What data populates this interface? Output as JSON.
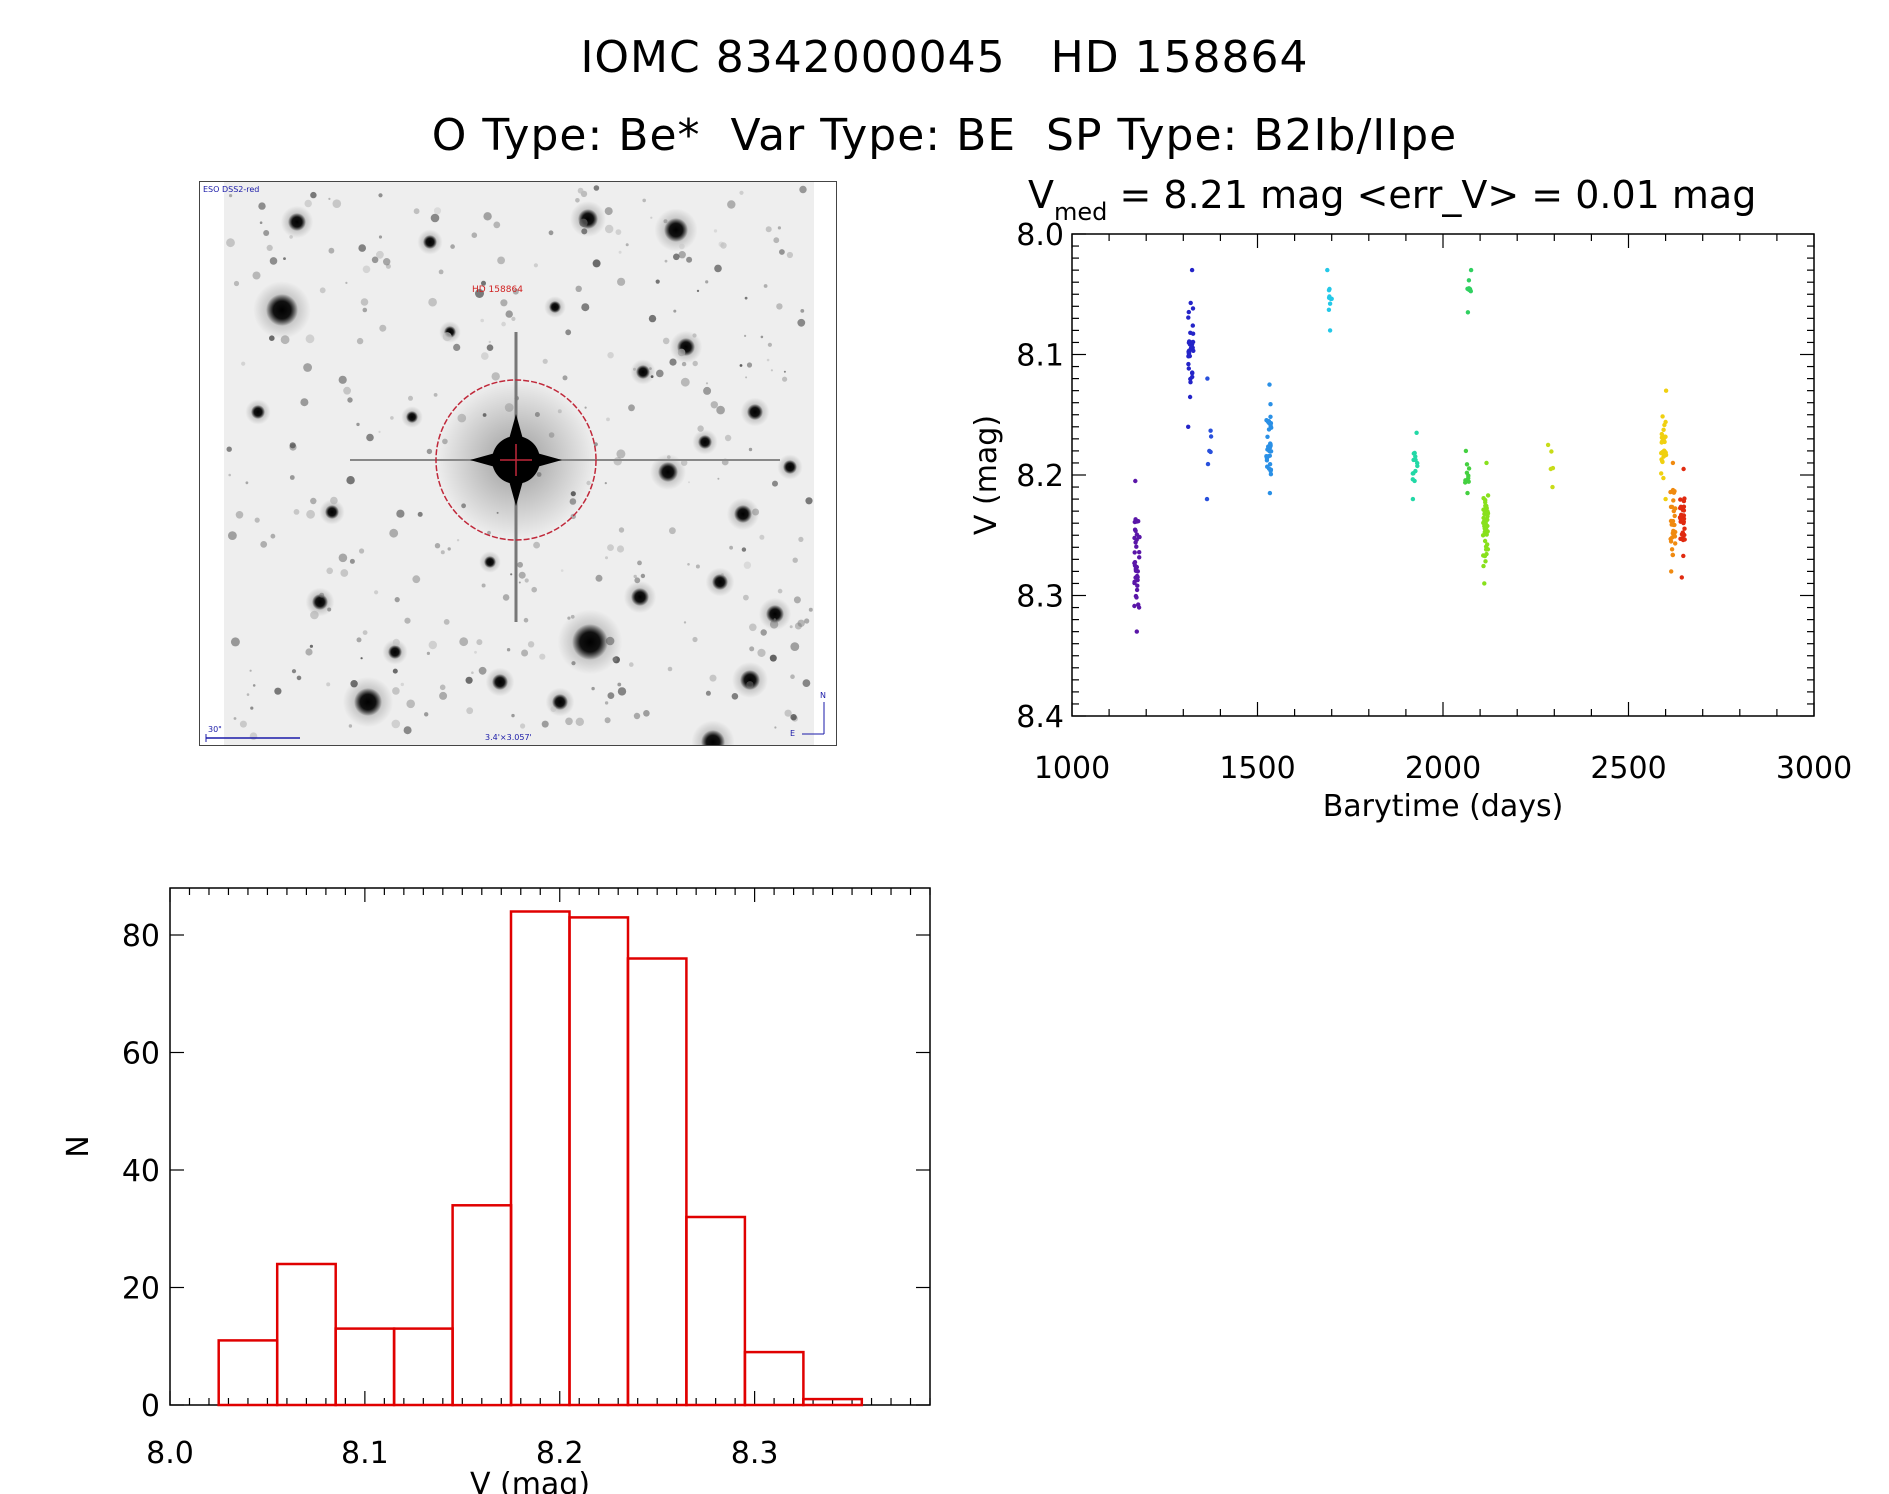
{
  "header": {
    "title_line1": "IOMC 8342000045   HD 158864",
    "title_line2": "O Type: Be*  Var Type: BE  SP Type: B2Ib/IIpe"
  },
  "finder_chart": {
    "survey_label": "ESO DSS2-red",
    "target_label": "HD 158864",
    "scale_label": "30\"",
    "field_label": "3.4'×3.057'",
    "north_label": "N",
    "east_label": "E",
    "colors": {
      "circle": "#c0283a",
      "labels": "#1a1aa8",
      "target_label": "#d02020"
    }
  },
  "chart_data": [
    {
      "type": "scatter",
      "title": "= 8.21 mag <err_V> = 0.01 mag",
      "title_prefix": "V",
      "title_subscript": "med",
      "xlabel": "Barytime (days)",
      "ylabel": "V (mag)",
      "xlim": [
        1000,
        3000
      ],
      "ylim": [
        8.4,
        8.0
      ],
      "y_inverted": true,
      "xticks": [
        "1000",
        "1500",
        "2000",
        "2500",
        "3000"
      ],
      "yticks": [
        "8.0",
        "8.1",
        "8.2",
        "8.3",
        "8.4"
      ],
      "color_scale": "rainbow by time (violet → red)",
      "clusters": [
        {
          "x": 1175,
          "y_min": 8.205,
          "y_max": 8.33,
          "y_center": 8.27,
          "n": 40,
          "color": "#5a16a8"
        },
        {
          "x": 1320,
          "y_min": 8.03,
          "y_max": 8.16,
          "y_center": 8.09,
          "n": 35,
          "color": "#2424c8"
        },
        {
          "x": 1370,
          "y_min": 8.12,
          "y_max": 8.22,
          "y_center": 8.17,
          "n": 7,
          "color": "#2850dc"
        },
        {
          "x": 1530,
          "y_min": 8.125,
          "y_max": 8.215,
          "y_center": 8.175,
          "n": 35,
          "color": "#2a90e6"
        },
        {
          "x": 1695,
          "y_min": 8.03,
          "y_max": 8.08,
          "y_center": 8.055,
          "n": 10,
          "color": "#23c8e8"
        },
        {
          "x": 1925,
          "y_min": 8.165,
          "y_max": 8.22,
          "y_center": 8.19,
          "n": 14,
          "color": "#22d8a6"
        },
        {
          "x": 2070,
          "y_min": 8.03,
          "y_max": 8.065,
          "y_center": 8.045,
          "n": 8,
          "color": "#30d060"
        },
        {
          "x": 2065,
          "y_min": 8.18,
          "y_max": 8.215,
          "y_center": 8.2,
          "n": 10,
          "color": "#44d040"
        },
        {
          "x": 2115,
          "y_min": 8.19,
          "y_max": 8.29,
          "y_center": 8.245,
          "n": 45,
          "color": "#88e01c"
        },
        {
          "x": 2290,
          "y_min": 8.175,
          "y_max": 8.21,
          "y_center": 8.19,
          "n": 5,
          "color": "#c8dc18"
        },
        {
          "x": 2595,
          "y_min": 8.13,
          "y_max": 8.22,
          "y_center": 8.18,
          "n": 30,
          "color": "#f0d010"
        },
        {
          "x": 2620,
          "y_min": 8.19,
          "y_max": 8.28,
          "y_center": 8.235,
          "n": 30,
          "color": "#f08a10"
        },
        {
          "x": 2645,
          "y_min": 8.195,
          "y_max": 8.285,
          "y_center": 8.235,
          "n": 30,
          "color": "#e02a10"
        }
      ]
    },
    {
      "type": "histogram",
      "xlabel": "V (mag)",
      "ylabel": "N",
      "xlim": [
        8.0,
        8.39
      ],
      "ylim": [
        0,
        88
      ],
      "xticks": [
        "8.0",
        "8.1",
        "8.2",
        "8.3"
      ],
      "yticks": [
        "0",
        "20",
        "40",
        "60",
        "80"
      ],
      "bar_color": "#e00000",
      "bin_edges": [
        8.025,
        8.055,
        8.085,
        8.115,
        8.145,
        8.175,
        8.205,
        8.235,
        8.265,
        8.295,
        8.325,
        8.355
      ],
      "values": [
        11,
        24,
        13,
        13,
        34,
        84,
        83,
        76,
        32,
        9,
        1
      ]
    }
  ]
}
